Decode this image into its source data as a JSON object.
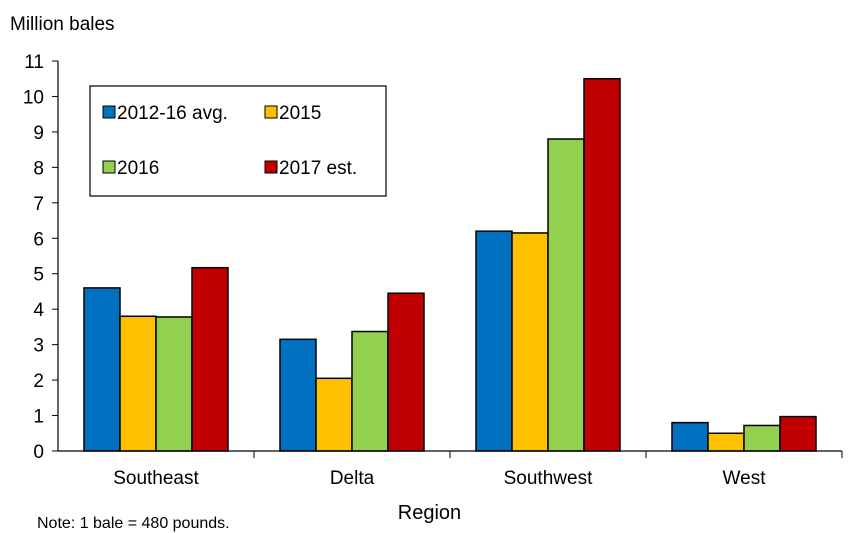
{
  "chart_data": {
    "type": "bar",
    "ylabel": "Million bales",
    "xlabel": "Region",
    "ylim": [
      0,
      11
    ],
    "yticks": [
      "0",
      "1",
      "2",
      "3",
      "4",
      "5",
      "6",
      "7",
      "8",
      "9",
      "10",
      "11"
    ],
    "categories": [
      "Southeast",
      "Delta",
      "Southwest",
      "West"
    ],
    "series": [
      {
        "name": "2012-16 avg.",
        "color": "#0070c0",
        "values": [
          4.6,
          3.15,
          6.2,
          0.8
        ]
      },
      {
        "name": "2015",
        "color": "#ffc000",
        "values": [
          3.8,
          2.05,
          6.15,
          0.5
        ]
      },
      {
        "name": "2016",
        "color": "#92d050",
        "values": [
          3.78,
          3.37,
          8.8,
          0.72
        ]
      },
      {
        "name": "2017 est.",
        "color": "#c00000",
        "values": [
          5.17,
          4.45,
          10.5,
          0.97
        ]
      }
    ],
    "legend_position": "top-left",
    "grid": false
  },
  "note": "Note: 1 bale = 480 pounds."
}
